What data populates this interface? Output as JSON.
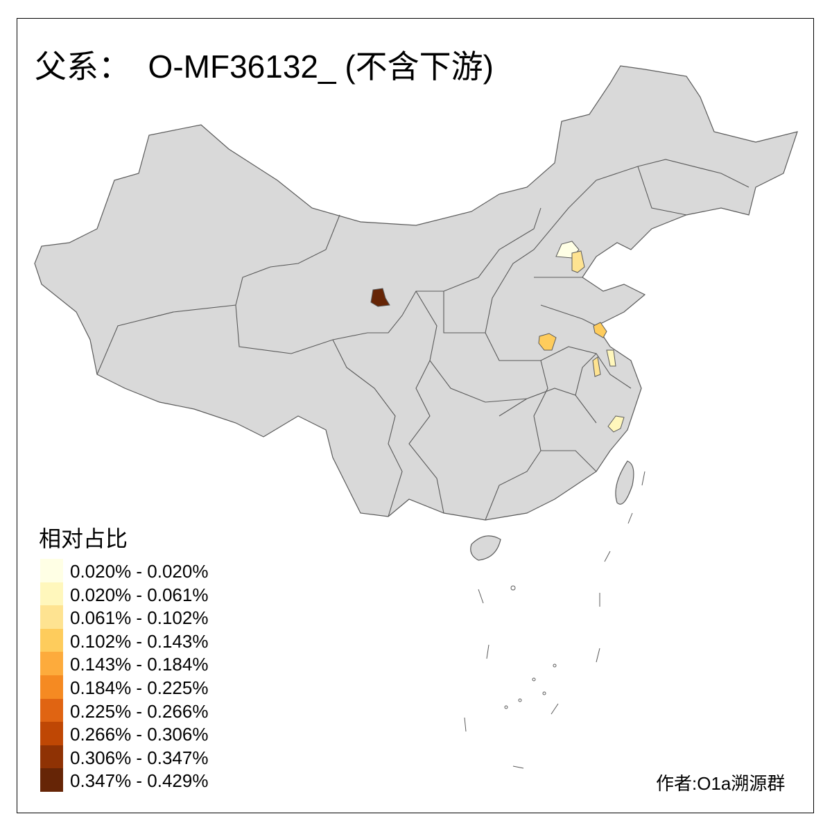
{
  "title": "父系：  O-MF36132_ (不含下游)",
  "legend": {
    "title": "相对占比",
    "items": [
      {
        "label": "0.020% - 0.020%",
        "color": "#ffffe5"
      },
      {
        "label": "0.020% - 0.061%",
        "color": "#fff7bc"
      },
      {
        "label": "0.061% - 0.102%",
        "color": "#fee391"
      },
      {
        "label": "0.102% - 0.143%",
        "color": "#fecc5c"
      },
      {
        "label": "0.143% - 0.184%",
        "color": "#fdab3c"
      },
      {
        "label": "0.184% - 0.225%",
        "color": "#f58a22"
      },
      {
        "label": "0.225% - 0.266%",
        "color": "#e06412"
      },
      {
        "label": "0.266% - 0.306%",
        "color": "#bf4704"
      },
      {
        "label": "0.306% - 0.347%",
        "color": "#8f3204"
      },
      {
        "label": "0.347% - 0.429%",
        "color": "#662506"
      }
    ]
  },
  "credit": "作者:O1a溯源群",
  "colors": {
    "base_fill": "#d9d9d9",
    "border": "#595959",
    "no_data": "#d9d9d9"
  },
  "highlighted_regions": [
    {
      "region": "Qinghai (Xining area)",
      "class": 9
    },
    {
      "region": "Beijing",
      "class": 0
    },
    {
      "region": "Tianjin",
      "class": 2
    },
    {
      "region": "Henan (Zhengzhou area)",
      "class": 3
    },
    {
      "region": "Jiangsu (Xuzhou/Lianyungang area)",
      "class": 3
    },
    {
      "region": "Anhui (central)",
      "class": 2
    },
    {
      "region": "Jiangsu (central)",
      "class": 1
    },
    {
      "region": "Zhejiang (Wenzhou area)",
      "class": 1
    }
  ]
}
